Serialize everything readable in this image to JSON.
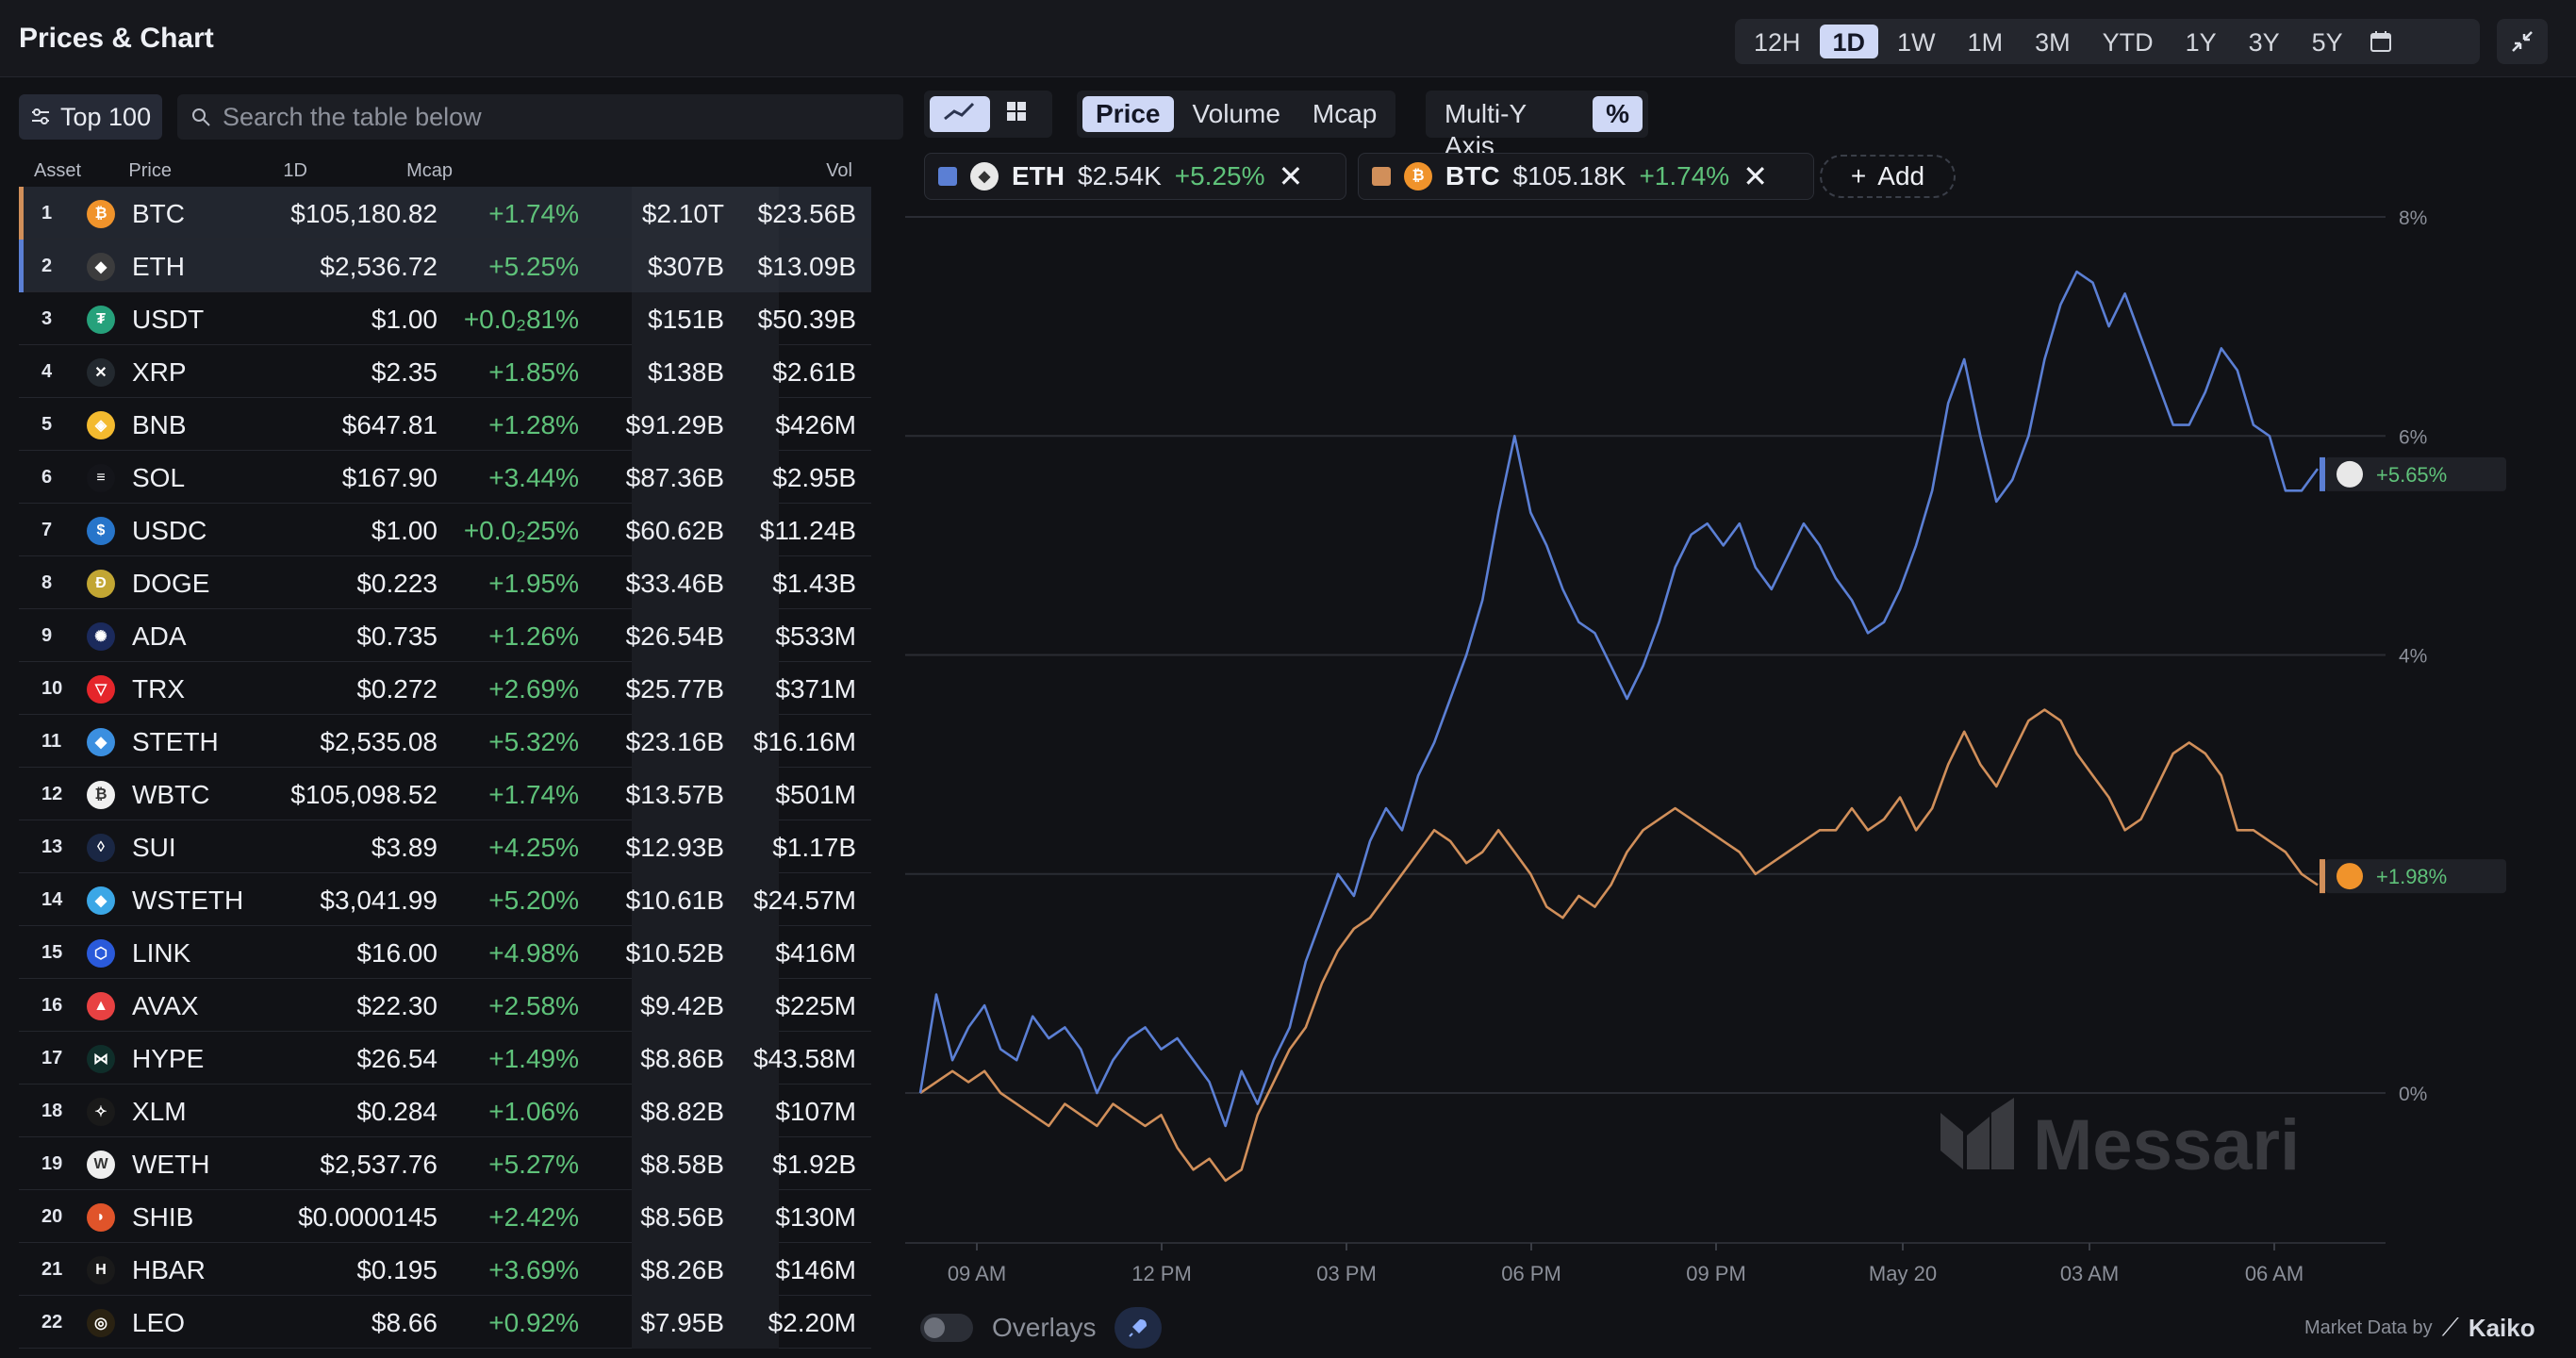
{
  "app": {
    "title": "Prices & Chart"
  },
  "time_ranges": [
    "12H",
    "1D",
    "1W",
    "1M",
    "3M",
    "YTD",
    "1Y",
    "3Y",
    "5Y"
  ],
  "active_range": "1D",
  "filter": {
    "label": "Top 100"
  },
  "search": {
    "placeholder": "Search the table below"
  },
  "table": {
    "headers": {
      "asset": "Asset",
      "price": "Price",
      "change": "1D",
      "mcap": "Mcap",
      "vol": "Vol"
    },
    "rows": [
      {
        "rank": "1",
        "symbol": "BTC",
        "price": "$105,180.82",
        "change": "+1.74%",
        "mcap": "$2.10T",
        "vol": "$23.56B",
        "color": "#f0932b",
        "icon": "bitcoin-icon",
        "glyph": "₿"
      },
      {
        "rank": "2",
        "symbol": "ETH",
        "price": "$2,536.72",
        "change": "+5.25%",
        "mcap": "$307B",
        "vol": "$13.09B",
        "color": "#3c3c3d",
        "icon": "ethereum-icon",
        "glyph": "◆"
      },
      {
        "rank": "3",
        "symbol": "USDT",
        "price": "$1.00",
        "change": "+0.0₂81%",
        "mcap": "$151B",
        "vol": "$50.39B",
        "color": "#26a17b",
        "icon": "tether-icon",
        "glyph": "₮"
      },
      {
        "rank": "4",
        "symbol": "XRP",
        "price": "$2.35",
        "change": "+1.85%",
        "mcap": "$138B",
        "vol": "$2.61B",
        "color": "#23292f",
        "icon": "xrp-icon",
        "glyph": "✕"
      },
      {
        "rank": "5",
        "symbol": "BNB",
        "price": "$647.81",
        "change": "+1.28%",
        "mcap": "$91.29B",
        "vol": "$426M",
        "color": "#f3ba2f",
        "icon": "bnb-icon",
        "glyph": "◈"
      },
      {
        "rank": "6",
        "symbol": "SOL",
        "price": "$167.90",
        "change": "+3.44%",
        "mcap": "$87.36B",
        "vol": "$2.95B",
        "color": "#14151a",
        "icon": "solana-icon",
        "glyph": "≡"
      },
      {
        "rank": "7",
        "symbol": "USDC",
        "price": "$1.00",
        "change": "+0.0₂25%",
        "mcap": "$60.62B",
        "vol": "$11.24B",
        "color": "#2775ca",
        "icon": "usdc-icon",
        "glyph": "$"
      },
      {
        "rank": "8",
        "symbol": "DOGE",
        "price": "$0.223",
        "change": "+1.95%",
        "mcap": "$33.46B",
        "vol": "$1.43B",
        "color": "#c2a633",
        "icon": "dogecoin-icon",
        "glyph": "Ð"
      },
      {
        "rank": "9",
        "symbol": "ADA",
        "price": "$0.735",
        "change": "+1.26%",
        "mcap": "$26.54B",
        "vol": "$533M",
        "color": "#1b2a5c",
        "icon": "cardano-icon",
        "glyph": "✺"
      },
      {
        "rank": "10",
        "symbol": "TRX",
        "price": "$0.272",
        "change": "+2.69%",
        "mcap": "$25.77B",
        "vol": "$371M",
        "color": "#e5262b",
        "icon": "tron-icon",
        "glyph": "▽"
      },
      {
        "rank": "11",
        "symbol": "STETH",
        "price": "$2,535.08",
        "change": "+5.32%",
        "mcap": "$23.16B",
        "vol": "$16.16M",
        "color": "#3b8fe0",
        "icon": "steth-icon",
        "glyph": "◆"
      },
      {
        "rank": "12",
        "symbol": "WBTC",
        "price": "$105,098.52",
        "change": "+1.74%",
        "mcap": "$13.57B",
        "vol": "$501M",
        "color": "#f0f0f0",
        "icon": "wbtc-icon",
        "glyph": "₿"
      },
      {
        "rank": "13",
        "symbol": "SUI",
        "price": "$3.89",
        "change": "+4.25%",
        "mcap": "$12.93B",
        "vol": "$1.17B",
        "color": "#1a2744",
        "icon": "sui-icon",
        "glyph": "◊"
      },
      {
        "rank": "14",
        "symbol": "WSTETH",
        "price": "$3,041.99",
        "change": "+5.20%",
        "mcap": "$10.61B",
        "vol": "$24.57M",
        "color": "#3ba7e6",
        "icon": "wsteth-icon",
        "glyph": "◆"
      },
      {
        "rank": "15",
        "symbol": "LINK",
        "price": "$16.00",
        "change": "+4.98%",
        "mcap": "$10.52B",
        "vol": "$416M",
        "color": "#2a5ada",
        "icon": "chainlink-icon",
        "glyph": "⬡"
      },
      {
        "rank": "16",
        "symbol": "AVAX",
        "price": "$22.30",
        "change": "+2.58%",
        "mcap": "$9.42B",
        "vol": "$225M",
        "color": "#e84142",
        "icon": "avalanche-icon",
        "glyph": "▲"
      },
      {
        "rank": "17",
        "symbol": "HYPE",
        "price": "$26.54",
        "change": "+1.49%",
        "mcap": "$8.86B",
        "vol": "$43.58M",
        "color": "#0f2e2a",
        "icon": "hyperliquid-icon",
        "glyph": "⋈"
      },
      {
        "rank": "18",
        "symbol": "XLM",
        "price": "$0.284",
        "change": "+1.06%",
        "mcap": "$8.82B",
        "vol": "$107M",
        "color": "#1a1a1a",
        "icon": "stellar-icon",
        "glyph": "✧"
      },
      {
        "rank": "19",
        "symbol": "WETH",
        "price": "$2,537.76",
        "change": "+5.27%",
        "mcap": "$8.58B",
        "vol": "$1.92B",
        "color": "#eeeeee",
        "icon": "weth-icon",
        "glyph": "W"
      },
      {
        "rank": "20",
        "symbol": "SHIB",
        "price": "$0.0000145",
        "change": "+2.42%",
        "mcap": "$8.56B",
        "vol": "$130M",
        "color": "#e0542a",
        "icon": "shiba-icon",
        "glyph": "◗"
      },
      {
        "rank": "21",
        "symbol": "HBAR",
        "price": "$0.195",
        "change": "+3.69%",
        "mcap": "$8.26B",
        "vol": "$146M",
        "color": "#1a1a1a",
        "icon": "hedera-icon",
        "glyph": "H"
      },
      {
        "rank": "22",
        "symbol": "LEO",
        "price": "$8.66",
        "change": "+0.92%",
        "mcap": "$7.95B",
        "vol": "$2.20M",
        "color": "#2a2212",
        "icon": "leo-icon",
        "glyph": "◎"
      }
    ]
  },
  "chart_toolbar": {
    "metrics": [
      "Price",
      "Volume",
      "Mcap"
    ],
    "active_metric": "Price",
    "multi_y_label": "Multi-Y Axis",
    "percent_label": "%"
  },
  "legend": [
    {
      "symbol": "ETH",
      "price": "$2.54K",
      "change": "+5.25%",
      "swatch": "#5b7fd4",
      "icon": "ethereum-icon"
    },
    {
      "symbol": "BTC",
      "price": "$105.18K",
      "change": "+1.74%",
      "swatch": "#d18f5a",
      "icon": "bitcoin-icon"
    }
  ],
  "add_label": "Add",
  "chart_data": {
    "type": "line",
    "x_ticks": [
      "09 AM",
      "12 PM",
      "03 PM",
      "06 PM",
      "09 PM",
      "May 20",
      "03 AM",
      "06 AM"
    ],
    "y_ticks": [
      "8%",
      "6%",
      "4%",
      "0%"
    ],
    "ylim": [
      -1.3,
      8
    ],
    "series": [
      {
        "name": "ETH",
        "color": "#5b7fd4",
        "end_label": "+5.65%",
        "values": [
          0,
          0.9,
          0.3,
          0.6,
          0.8,
          0.4,
          0.3,
          0.7,
          0.5,
          0.6,
          0.4,
          0.0,
          0.3,
          0.5,
          0.6,
          0.4,
          0.5,
          0.3,
          0.1,
          -0.3,
          0.2,
          -0.1,
          0.3,
          0.6,
          1.2,
          1.6,
          2.0,
          1.8,
          2.3,
          2.6,
          2.4,
          2.9,
          3.2,
          3.6,
          4.0,
          4.5,
          5.3,
          6.0,
          5.3,
          5.0,
          4.6,
          4.3,
          4.2,
          3.9,
          3.6,
          3.9,
          4.3,
          4.8,
          5.1,
          5.2,
          5.0,
          5.2,
          4.8,
          4.6,
          4.9,
          5.2,
          5.0,
          4.7,
          4.5,
          4.2,
          4.3,
          4.6,
          5.0,
          5.5,
          6.3,
          6.7,
          6.0,
          5.4,
          5.6,
          6.0,
          6.7,
          7.2,
          7.5,
          7.4,
          7.0,
          7.3,
          6.9,
          6.5,
          6.1,
          6.1,
          6.4,
          6.8,
          6.6,
          6.1,
          6.0,
          5.5,
          5.5,
          5.7
        ],
        "end_value": 5.65
      },
      {
        "name": "BTC",
        "color": "#d18f5a",
        "end_label": "+1.98%",
        "values": [
          0,
          0.1,
          0.2,
          0.1,
          0.2,
          0.0,
          -0.1,
          -0.2,
          -0.3,
          -0.1,
          -0.2,
          -0.3,
          -0.1,
          -0.2,
          -0.3,
          -0.2,
          -0.5,
          -0.7,
          -0.6,
          -0.8,
          -0.7,
          -0.2,
          0.1,
          0.4,
          0.6,
          1.0,
          1.3,
          1.5,
          1.6,
          1.8,
          2.0,
          2.2,
          2.4,
          2.3,
          2.1,
          2.2,
          2.4,
          2.2,
          2.0,
          1.7,
          1.6,
          1.8,
          1.7,
          1.9,
          2.2,
          2.4,
          2.5,
          2.6,
          2.5,
          2.4,
          2.3,
          2.2,
          2.0,
          2.1,
          2.2,
          2.3,
          2.4,
          2.4,
          2.6,
          2.4,
          2.5,
          2.7,
          2.4,
          2.6,
          3.0,
          3.3,
          3.0,
          2.8,
          3.1,
          3.4,
          3.5,
          3.4,
          3.1,
          2.9,
          2.7,
          2.4,
          2.5,
          2.8,
          3.1,
          3.2,
          3.1,
          2.9,
          2.4,
          2.4,
          2.3,
          2.2,
          2.0,
          1.9
        ],
        "end_value": 1.98
      }
    ]
  },
  "overlays": {
    "label": "Overlays"
  },
  "credit": {
    "label": "Market Data by",
    "brand": "Kaiko"
  },
  "watermark": "Messari"
}
